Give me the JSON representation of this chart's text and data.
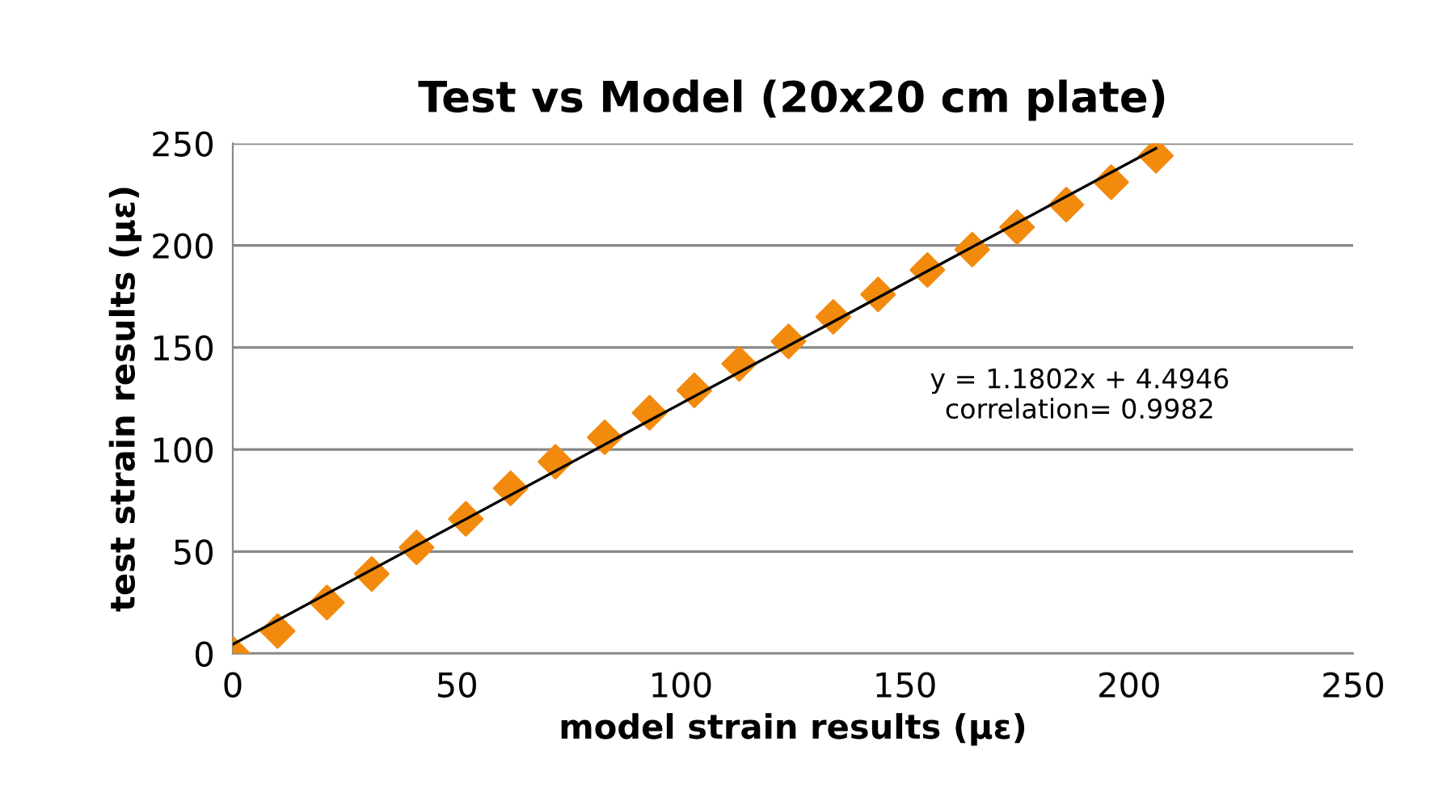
{
  "chart_data": {
    "type": "scatter",
    "title": "Test vs Model (20x20 cm plate)",
    "xlabel": "model strain results (με)",
    "ylabel": "test strain results (με)",
    "xlim": [
      0,
      250
    ],
    "ylim": [
      0,
      250
    ],
    "xticks": [
      0,
      50,
      100,
      150,
      200,
      250
    ],
    "yticks": [
      0,
      50,
      100,
      150,
      200,
      250
    ],
    "grid": "y",
    "marker": "diamond",
    "legend": false,
    "annotations": [
      "y = 1.1802x + 4.4946\ncorrelation= 0.9982"
    ],
    "series": [
      {
        "color": "#f28a0e",
        "x": [
          0,
          10,
          21,
          31,
          41,
          52,
          62,
          72,
          83,
          93,
          103,
          113,
          124,
          134,
          144,
          155,
          165,
          175,
          186,
          196,
          206
        ],
        "values": [
          0,
          11,
          25,
          39,
          52,
          66,
          81,
          94,
          106,
          118,
          129,
          142,
          153,
          165,
          176,
          188,
          198,
          209,
          220,
          231,
          244
        ]
      },
      {
        "type": "line",
        "marker": "none",
        "color": "#000000",
        "x": [
          0,
          206
        ],
        "values": [
          4.5,
          247.6
        ]
      }
    ]
  }
}
